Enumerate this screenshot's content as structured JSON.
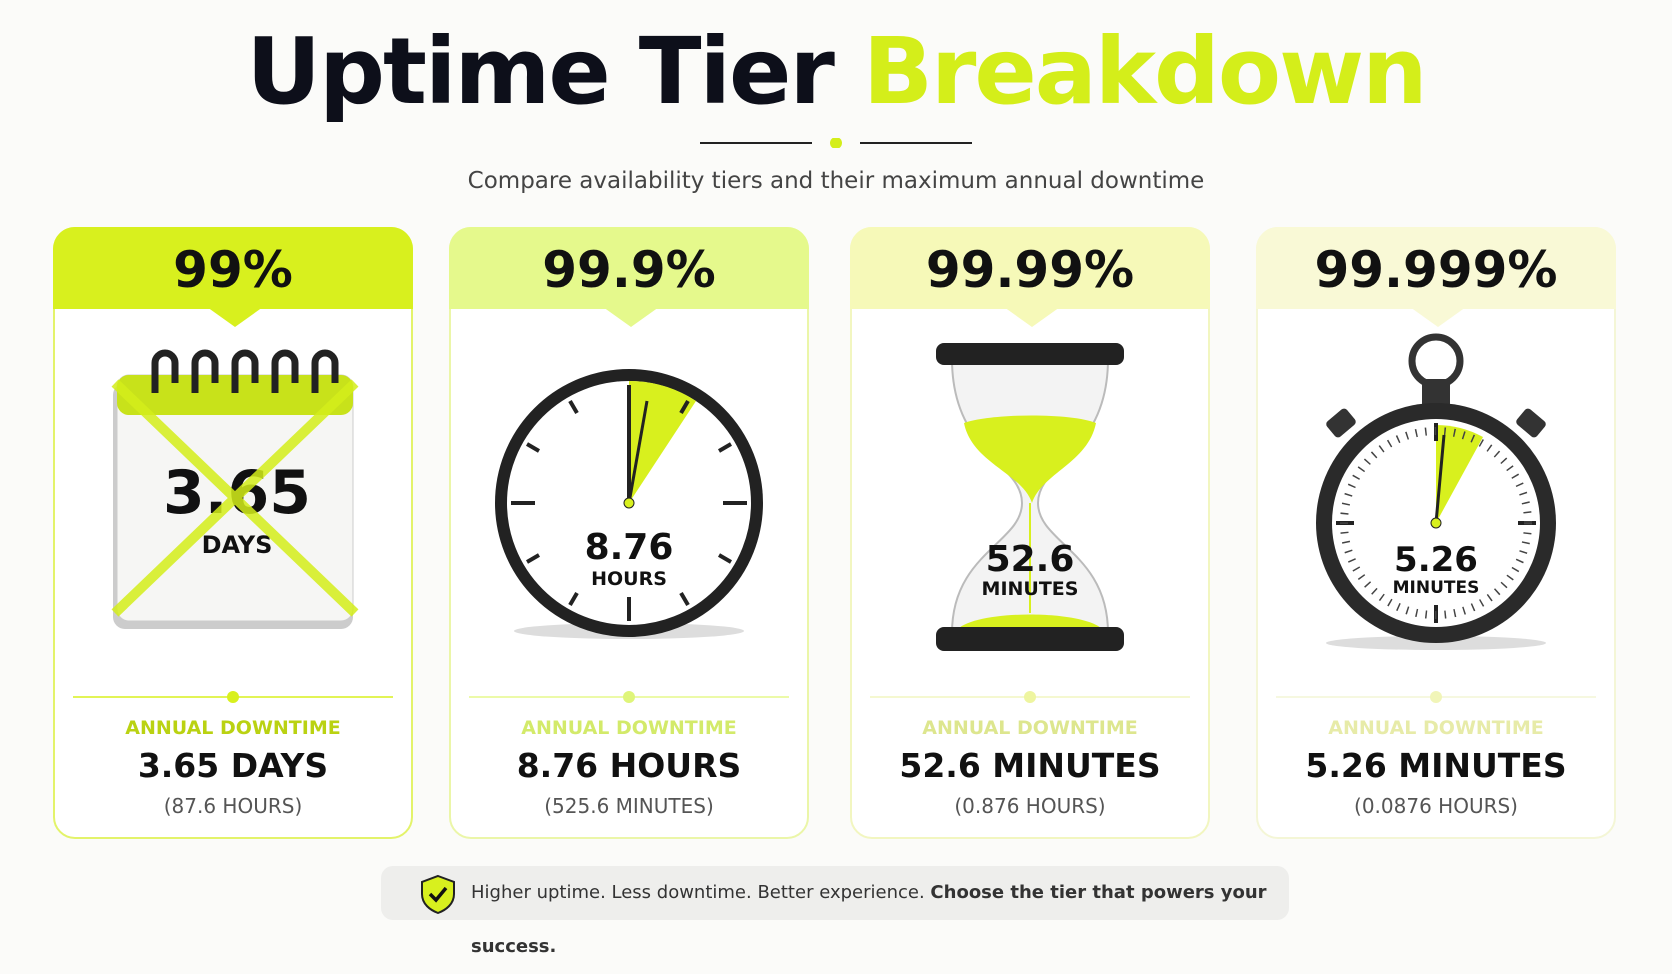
{
  "header": {
    "title_dark": "Uptime Tier",
    "title_accent": "Breakdown",
    "subtitle": "Compare availability tiers and their maximum annual downtime"
  },
  "cards": [
    {
      "tier": "99%",
      "icon_value": "3.65",
      "icon_unit": "DAYS",
      "label": "ANNUAL DOWNTIME",
      "downtime": "3.65 DAYS",
      "secondary": "(87.6 HOURS)"
    },
    {
      "tier": "99.9%",
      "icon_value": "8.76",
      "icon_unit": "HOURS",
      "label": "ANNUAL DOWNTIME",
      "downtime": "8.76 HOURS",
      "secondary": "(525.6 MINUTES)"
    },
    {
      "tier": "99.99%",
      "icon_value": "52.6",
      "icon_unit": "MINUTES",
      "label": "ANNUAL DOWNTIME",
      "downtime": "52.6 MINUTES",
      "secondary": "(0.876 HOURS)"
    },
    {
      "tier": "99.999%",
      "icon_value": "5.26",
      "icon_unit": "MINUTES",
      "label": "ANNUAL DOWNTIME",
      "downtime": "5.26 MINUTES",
      "secondary": "(0.0876 HOURS)"
    }
  ],
  "footer": {
    "text": "Higher uptime. Less downtime. Better experience.",
    "bold": "Choose the tier that powers your success."
  }
}
